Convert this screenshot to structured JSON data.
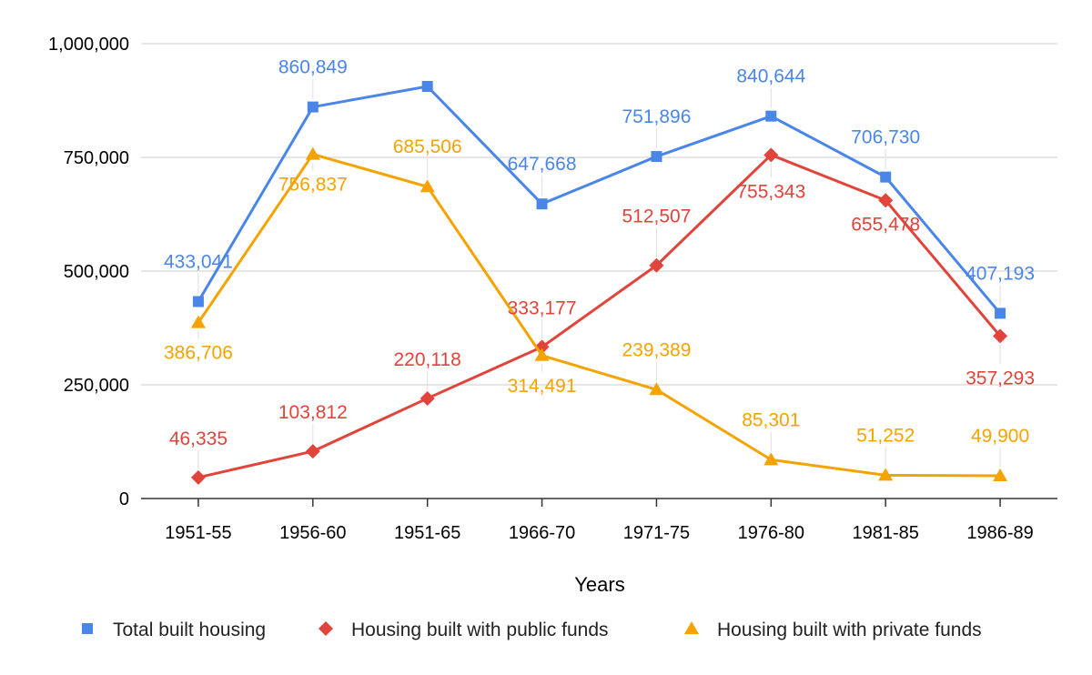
{
  "chart_data": {
    "type": "line",
    "title": "",
    "xlabel": "Years",
    "ylabel": "",
    "ylim": [
      0,
      1000000
    ],
    "yticks": [
      0,
      250000,
      500000,
      750000,
      1000000
    ],
    "ytick_labels": [
      "0",
      "250,000",
      "500,000",
      "750,000",
      "1,000,000"
    ],
    "grid": true,
    "legend_position": "bottom",
    "categories": [
      "1951-55",
      "1956-60",
      "1951-65",
      "1966-70",
      "1971-75",
      "1976-80",
      "1981-85",
      "1986-89"
    ],
    "series": [
      {
        "name": "Total built housing",
        "color": "#4a86e8",
        "marker": "square",
        "values": [
          433041,
          860849,
          906000,
          647668,
          751896,
          840644,
          706730,
          407193
        ],
        "labels": [
          "433,041",
          "860,849",
          "",
          "647,668",
          "751,896",
          "840,644",
          "706,730",
          "407,193"
        ]
      },
      {
        "name": "Housing built with public funds",
        "color": "#e0443b",
        "marker": "diamond",
        "values": [
          46335,
          103812,
          220118,
          333177,
          512507,
          755343,
          655478,
          357293
        ],
        "labels": [
          "46,335",
          "103,812",
          "220,118",
          "333,177",
          "512,507",
          "755,343",
          "655,478",
          "357,293"
        ]
      },
      {
        "name": "Housing built with private funds",
        "color": "#f4a300",
        "marker": "triangle",
        "values": [
          386706,
          756837,
          685506,
          314491,
          239389,
          85301,
          51252,
          49900
        ],
        "labels": [
          "386,706",
          "756,837",
          "685,506",
          "314,491",
          "239,389",
          "85,301",
          "51,252",
          "49,900"
        ]
      }
    ]
  }
}
